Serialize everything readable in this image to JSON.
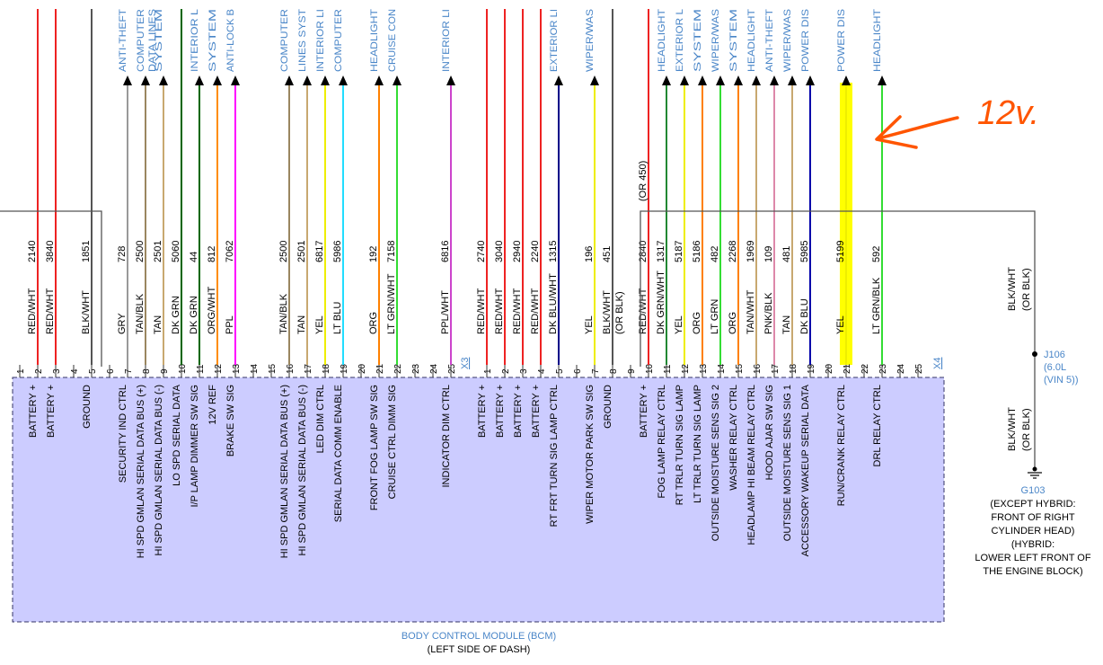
{
  "module": {
    "name": "BODY CONTROL MODULE (BCM)",
    "location": "(LEFT SIDE OF DASH)",
    "fill_color": "#ccccff",
    "outline_color": "#333366"
  },
  "connector_refs": [
    "X3",
    "X4"
  ],
  "annotation": {
    "text": "12v.",
    "color": "#ff5500"
  },
  "highlight_color": "#ffff00",
  "j106": {
    "label": "J106",
    "note1": "(6.0L",
    "note2": "(VIN 5))"
  },
  "ground_wire": {
    "top_color": "BLK/WHT",
    "top_alt": "(OR BLK)",
    "bot_color": "BLK/WHT",
    "bot_alt": "(OR BLK)"
  },
  "g103": {
    "label": "G103",
    "lines": [
      "(EXCEPT HYBRID:",
      "FRONT OF RIGHT",
      "CYLINDER HEAD)",
      "(HYBRID:",
      "LOWER LEFT FRONT OF",
      "THE ENGINE BLOCK)"
    ]
  },
  "wires": [
    {
      "pin": "1"
    },
    {
      "pin": "2",
      "circuit": "2140",
      "color": "RED/WHT",
      "signal": "BATTERY +",
      "hex": "#ee2222"
    },
    {
      "pin": "3",
      "circuit": "3840",
      "color": "RED/WHT",
      "signal": "BATTERY +",
      "hex": "#ee2222"
    },
    {
      "pin": "4"
    },
    {
      "pin": "5",
      "circuit": "1851",
      "color": "BLK/WHT",
      "signal": "GROUND",
      "hex": "#555555"
    },
    {
      "pin": "6"
    },
    {
      "pin": "7",
      "circuit": "728",
      "color": "GRY",
      "signal": "SECURITY IND CTRL",
      "hex": "#999999",
      "dest": [
        "ANTI-THEFT"
      ]
    },
    {
      "pin": "8",
      "circuit": "2500",
      "color": "TAN/BLK",
      "signal": "HI SPD GMLAN SERIAL DATA BUS (+)",
      "hex": "#9a8660",
      "dest": [
        "COMPUTER",
        "DATA LINES"
      ]
    },
    {
      "pin": "9",
      "circuit": "2501",
      "color": "TAN",
      "signal": "HI SPD GMLAN SERIAL DATA BUS (-)",
      "hex": "#c8a870",
      "dest": [
        "SYSTEM"
      ]
    },
    {
      "pin": "10",
      "circuit": "5060",
      "color": "DK GRN",
      "signal": "LO SPD SERIAL DATA",
      "hex": "#006600"
    },
    {
      "pin": "11",
      "circuit": "44",
      "color": "DK GRN",
      "signal": "I/P LAMP DIMMER SW SIG",
      "hex": "#006600",
      "dest": [
        "INTERIOR L"
      ]
    },
    {
      "pin": "12",
      "circuit": "812",
      "color": "ORG/WHT",
      "signal": "12V REF",
      "hex": "#ff8c00",
      "dest": [
        "SYSTEM"
      ]
    },
    {
      "pin": "13",
      "circuit": "7062",
      "color": "PPL",
      "signal": "BRAKE SW SIG",
      "hex": "#ff00ff",
      "dest": [
        "ANTI-LOCK B"
      ]
    },
    {
      "pin": "14"
    },
    {
      "pin": "15"
    },
    {
      "pin": "16",
      "circuit": "2500",
      "color": "TAN/BLK",
      "signal": "HI SPD GMLAN SERIAL DATA BUS (+)",
      "hex": "#9a8660",
      "dest": [
        "COMPUTER"
      ]
    },
    {
      "pin": "17",
      "circuit": "2501",
      "color": "TAN",
      "signal": "HI SPD GMLAN SERIAL DATA BUS (-)",
      "hex": "#c8a870",
      "dest": [
        "LINES SYST"
      ]
    },
    {
      "pin": "18",
      "circuit": "6817",
      "color": "YEL",
      "signal": "LED DIM CTRL",
      "hex": "#eeee00",
      "dest": [
        "INTERIOR LI"
      ]
    },
    {
      "pin": "19",
      "circuit": "5986",
      "color": "LT BLU",
      "signal": "SERIAL DATA COMM ENABLE",
      "hex": "#22ddff",
      "dest": [
        "COMPUTER"
      ]
    },
    {
      "pin": "20"
    },
    {
      "pin": "21",
      "circuit": "192",
      "color": "ORG",
      "signal": "FRONT FOG LAMP SW SIG",
      "hex": "#ff8000",
      "dest": [
        "HEADLIGHT"
      ]
    },
    {
      "pin": "22",
      "circuit": "7158",
      "color": "LT GRN/WHT",
      "signal": "CRUISE CTRL DIMM SIG",
      "hex": "#33dd33",
      "dest": [
        "CRUISE CON"
      ]
    },
    {
      "pin": "23"
    },
    {
      "pin": "24"
    },
    {
      "pin": "25",
      "circuit": "6816",
      "color": "PPL/WHT",
      "signal": "INDICATOR DIM CTRL",
      "hex": "#cc44cc",
      "dest": [
        "INTERIOR LI"
      ]
    },
    {
      "pin": "1",
      "circuit": "2740",
      "color": "RED/WHT",
      "signal": "BATTERY +",
      "hex": "#ee2222"
    },
    {
      "pin": "2",
      "circuit": "3040",
      "color": "RED/WHT",
      "signal": "BATTERY +",
      "hex": "#ee2222"
    },
    {
      "pin": "3",
      "circuit": "2940",
      "color": "RED/WHT",
      "signal": "BATTERY +",
      "hex": "#ee2222"
    },
    {
      "pin": "4",
      "circuit": "2240",
      "color": "RED/WHT",
      "signal": "BATTERY +",
      "hex": "#ee2222"
    },
    {
      "pin": "5",
      "circuit": "1315",
      "color": "DK BLU/WHT",
      "signal": "RT FRT TURN SIG LAMP CTRL",
      "hex": "#000088",
      "dest": [
        "EXTERIOR LI"
      ]
    },
    {
      "pin": "6"
    },
    {
      "pin": "7",
      "circuit": "196",
      "color": "YEL",
      "signal": "WIPER MOTOR PARK SW SIG",
      "hex": "#eeee00",
      "dest": [
        "WIPER/WAS"
      ]
    },
    {
      "pin": "8",
      "circuit": "451",
      "color": "BLK/WHT",
      "color2": "(OR BLK)",
      "signal": "GROUND",
      "hex": "#555555"
    },
    {
      "pin": "9"
    },
    {
      "pin": "10",
      "circuit": "2840",
      "circuit2": "(OR 450)",
      "color": "RED/WHT",
      "signal": "BATTERY +",
      "hex": "#ee2222"
    },
    {
      "pin": "11",
      "circuit": "1317",
      "color": "DK GRN/WHT",
      "signal": "FOG LAMP RELAY CTRL",
      "hex": "#228833",
      "dest": [
        "HEADLIGHT"
      ]
    },
    {
      "pin": "12",
      "circuit": "5187",
      "color": "YEL",
      "signal": "RT TRLR TURN SIG LAMP",
      "hex": "#eeee00",
      "dest": [
        "EXTERIOR L"
      ]
    },
    {
      "pin": "13",
      "circuit": "5186",
      "color": "ORG",
      "signal": "LT TRLR TURN SIG LAMP",
      "hex": "#ff8000",
      "dest": [
        "SYSTEM"
      ]
    },
    {
      "pin": "14",
      "circuit": "482",
      "color": "LT GRN",
      "signal": "OUTSIDE MOISTURE SENS SIG 2",
      "hex": "#33dd33",
      "dest": [
        "WIPER/WAS"
      ]
    },
    {
      "pin": "15",
      "circuit": "2268",
      "color": "ORG",
      "signal": "WASHER RELAY CTRL",
      "hex": "#ff8000",
      "dest": [
        "SYSTEM"
      ]
    },
    {
      "pin": "16",
      "circuit": "1969",
      "color": "TAN/WHT",
      "signal": "HEADLAMP HI BEAM RELAY CTRL",
      "hex": "#c8a870",
      "dest": [
        "HEADLIGHT"
      ]
    },
    {
      "pin": "17",
      "circuit": "109",
      "color": "PNK/BLK",
      "signal": "HOOD AJAR SW SIG",
      "hex": "#dd88aa",
      "dest": [
        "ANTI-THEFT"
      ]
    },
    {
      "pin": "18",
      "circuit": "481",
      "color": "TAN",
      "signal": "OUTSIDE MOISTURE SENS SIG 1",
      "hex": "#c8a870",
      "dest": [
        "WIPER/WAS"
      ]
    },
    {
      "pin": "19",
      "circuit": "5985",
      "color": "DK BLU",
      "signal": "ACCESSORY WAKEUP SERIAL DATA",
      "hex": "#0000aa",
      "dest": [
        "POWER DIS"
      ]
    },
    {
      "pin": "20"
    },
    {
      "pin": "21",
      "circuit": "5199",
      "color": "YEL",
      "signal": "RUN/CRANK RELAY CTRL",
      "hex": "#eeee00",
      "dest": [
        "POWER DIS"
      ],
      "highlight": true
    },
    {
      "pin": "22"
    },
    {
      "pin": "23",
      "circuit": "592",
      "color": "LT GRN/BLK",
      "signal": "DRL RELAY CTRL",
      "hex": "#33dd33",
      "dest": [
        "HEADLIGHT"
      ]
    },
    {
      "pin": "24"
    },
    {
      "pin": "25"
    }
  ]
}
